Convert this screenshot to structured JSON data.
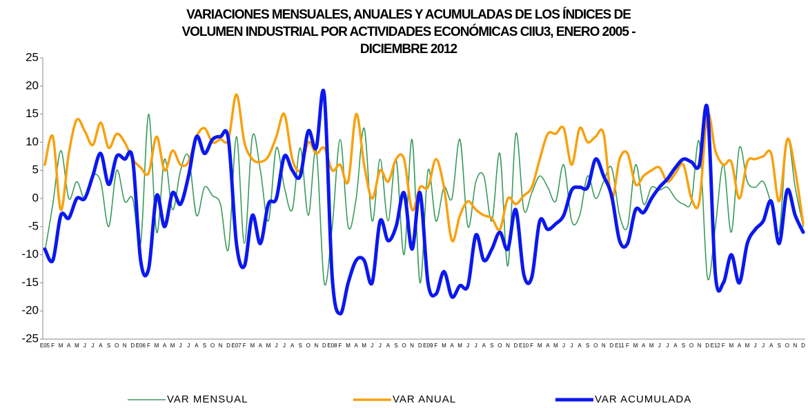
{
  "chart_data": {
    "type": "line",
    "title": [
      "VARIACIONES MENSUALES, ANUALES Y ACUMULADAS DE LOS ÍNDICES DE",
      "VOLUMEN INDUSTRIAL POR ACTIVIDADES ECONÓMICAS CIIU3, ENERO 2005 -",
      "DICIEMBRE 2012"
    ],
    "categories": [
      "E05",
      "F",
      "M",
      "A",
      "M",
      "J",
      "J",
      "A",
      "S",
      "O",
      "N",
      "D",
      "E06",
      "F",
      "M",
      "A",
      "M",
      "J",
      "J",
      "A",
      "S",
      "O",
      "N",
      "D",
      "E07",
      "F",
      "M",
      "A",
      "M",
      "J",
      "J",
      "A",
      "S",
      "O",
      "N",
      "D",
      "E08",
      "F",
      "M",
      "A",
      "M",
      "J",
      "J",
      "A",
      "S",
      "O",
      "N",
      "D",
      "E09",
      "F",
      "M",
      "A",
      "M",
      "J",
      "J",
      "A",
      "S",
      "O",
      "N",
      "D",
      "E10",
      "F",
      "M",
      "A",
      "M",
      "J",
      "J",
      "A",
      "S",
      "O",
      "N",
      "D",
      "E11",
      "F",
      "M",
      "A",
      "M",
      "J",
      "J",
      "A",
      "S",
      "O",
      "N",
      "D",
      "E12",
      "F",
      "M",
      "A",
      "M",
      "J",
      "J",
      "A",
      "S",
      "O",
      "N",
      "D"
    ],
    "series": [
      {
        "name": "VAR MENSUAL",
        "color": "#3a9a5b",
        "width": 1.6,
        "values": [
          -9.5,
          -1,
          8.5,
          0,
          3,
          0,
          4,
          3,
          -5,
          5,
          -0.5,
          0,
          -8,
          15,
          -6,
          7,
          -2,
          5,
          7.5,
          -3,
          2,
          0.5,
          -1,
          -9,
          11,
          -8,
          11,
          5,
          -4,
          9,
          2,
          -2,
          9,
          -3,
          8.5,
          -15,
          -5,
          10.5,
          -5,
          0,
          12.5,
          -4,
          7,
          -4,
          7,
          -10,
          10.5,
          -15,
          5,
          -4,
          2,
          0,
          10.5,
          -5,
          3,
          4,
          -4,
          8,
          -12,
          11.5,
          -2,
          1,
          4,
          2,
          -0.5,
          6,
          -4,
          -3,
          4,
          0,
          3,
          5.5,
          -3,
          -5,
          6,
          -1,
          2,
          1.5,
          2,
          0,
          -1,
          -0.5,
          10,
          -14,
          -5,
          6,
          -6,
          9,
          3,
          2,
          3,
          -1,
          -6,
          10.5,
          2,
          -5
        ]
      },
      {
        "name": "VAR ANUAL",
        "color": "#f7a10f",
        "width": 3.5,
        "values": [
          6,
          11,
          -2,
          8,
          14,
          12,
          9.5,
          13.5,
          9,
          11.5,
          10,
          7,
          5.5,
          4.5,
          11,
          5,
          8.5,
          6,
          6.5,
          11,
          12.5,
          10,
          10.5,
          10.5,
          18.5,
          10,
          7,
          6.5,
          7.5,
          11,
          15,
          7,
          5,
          10,
          8,
          9,
          5,
          6,
          3,
          15,
          6,
          0,
          5,
          3,
          7,
          7,
          -2,
          2,
          2,
          7,
          2,
          -7.5,
          -3,
          -0.5,
          -2,
          -3,
          -3.5,
          -5.5,
          0,
          -1,
          0.5,
          2,
          7,
          11.5,
          11.5,
          12.5,
          6,
          12.5,
          10,
          11,
          11.5,
          0,
          7,
          8,
          2.5,
          4,
          5,
          5.5,
          3,
          4.5,
          6,
          0,
          -0.5,
          15,
          8.5,
          6,
          6.5,
          0,
          6.5,
          7,
          7.5,
          8,
          -0.5,
          10.5,
          5,
          -4.5
        ]
      },
      {
        "name": "VAR ACUMULADA",
        "color": "#0b18ee",
        "width": 5,
        "values": [
          -9,
          -11,
          -3,
          -3.5,
          0,
          0,
          4,
          8,
          2.5,
          7.5,
          7,
          7,
          -11,
          -12.5,
          0.5,
          -5,
          1,
          -1,
          4,
          11,
          8,
          10.5,
          11,
          10.5,
          -8,
          -12,
          -3,
          -8,
          -1,
          0,
          7.5,
          5,
          4,
          12,
          9,
          18.5,
          -14,
          -20.5,
          -15,
          -11,
          -11,
          -15,
          -4,
          -7.5,
          -5,
          1,
          -9,
          1,
          -15,
          -17,
          -13,
          -17.5,
          -15.5,
          -15.5,
          -6.5,
          -11,
          -9,
          -6,
          -9,
          -2,
          -13.5,
          -14,
          -4,
          -5.5,
          -4.5,
          -3,
          1.5,
          2,
          2,
          7,
          4,
          0.5,
          -7.5,
          -8,
          -2,
          -2.5,
          0,
          2,
          3.5,
          5.5,
          7,
          6.5,
          6,
          16,
          -13.5,
          -15,
          -10,
          -15,
          -8,
          -5.5,
          -4,
          -0.5,
          -8,
          1.5,
          -3,
          -6
        ]
      }
    ],
    "ylim": [
      -25,
      25
    ],
    "yticks": [
      -25,
      -20,
      -15,
      -10,
      -5,
      0,
      5,
      10,
      15,
      20,
      25
    ],
    "grid": false,
    "legend": "bottom"
  }
}
